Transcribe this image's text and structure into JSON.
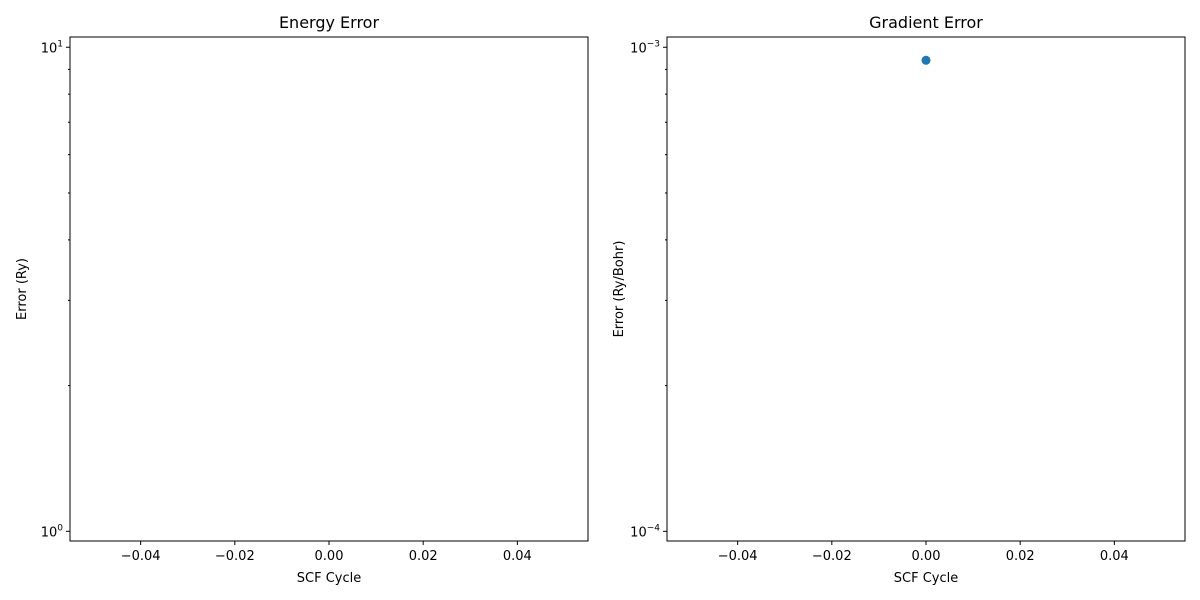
{
  "chart_data": [
    {
      "type": "scatter",
      "title": "Energy Error",
      "xlabel": "SCF Cycle",
      "ylabel": "Error (Ry)",
      "xlim": [
        -0.055,
        0.055
      ],
      "xticks": [
        -0.04,
        -0.02,
        0.0,
        0.02,
        0.04
      ],
      "xtick_labels": [
        "−0.04",
        "−0.02",
        "0.00",
        "0.02",
        "0.04"
      ],
      "yscale": "log",
      "ylim": [
        0.955,
        10.5
      ],
      "yticks": [
        1,
        10
      ],
      "ytick_labels": [
        {
          "base": "10",
          "exp": "0"
        },
        {
          "base": "10",
          "exp": "1"
        }
      ],
      "grid": false,
      "series": [
        {
          "x": [],
          "y": [],
          "color": "#1f77b4"
        }
      ]
    },
    {
      "type": "scatter",
      "title": "Gradient Error",
      "xlabel": "SCF Cycle",
      "ylabel": "Error (Ry/Bohr)",
      "xlim": [
        -0.055,
        0.055
      ],
      "xticks": [
        -0.04,
        -0.02,
        0.0,
        0.02,
        0.04
      ],
      "xtick_labels": [
        "−0.04",
        "−0.02",
        "0.00",
        "0.02",
        "0.04"
      ],
      "yscale": "log",
      "ylim": [
        9.55e-05,
        0.00105
      ],
      "yticks": [
        0.0001,
        0.001
      ],
      "ytick_labels": [
        {
          "base": "10",
          "exp": "−4"
        },
        {
          "base": "10",
          "exp": "−3"
        }
      ],
      "grid": false,
      "series": [
        {
          "x": [
            0.0
          ],
          "y": [
            0.00094
          ],
          "color": "#1f77b4"
        }
      ]
    }
  ]
}
